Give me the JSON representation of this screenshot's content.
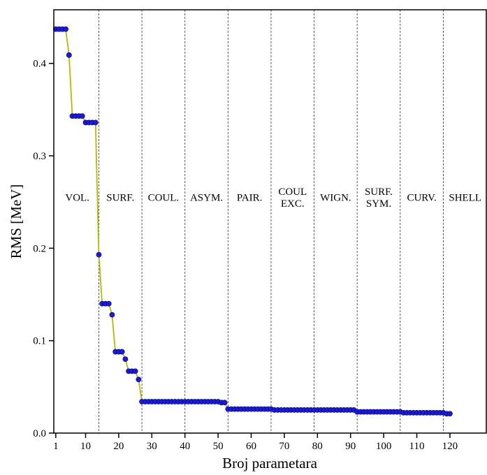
{
  "chart_data": {
    "type": "line",
    "x_label": "Broj parametara",
    "y_label": "RMS [MeV]",
    "xlim": [
      0.4,
      131.2
    ],
    "ylim": [
      0,
      0.458
    ],
    "xticks": [
      1,
      10,
      20,
      30,
      40,
      50,
      60,
      70,
      80,
      90,
      100,
      110,
      120
    ],
    "yticks": [
      {
        "value": 0,
        "label": "0.0"
      },
      0.1,
      0.2,
      0.3,
      0.4
    ],
    "dividers": [
      14,
      27,
      40,
      53,
      66,
      79,
      92,
      105,
      118
    ],
    "section_labels": [
      [
        "VOL."
      ],
      [
        "SURF."
      ],
      [
        "COUL."
      ],
      [
        "ASYM."
      ],
      [
        "PAIR."
      ],
      [
        "COUL",
        "EXC."
      ],
      [
        "WIGN."
      ],
      [
        "SURF.",
        "SYM."
      ],
      [
        "CURV."
      ],
      [
        "SHELL"
      ]
    ],
    "line_color": "#b8b800",
    "marker_color": "#1a1ad8",
    "x": [
      1,
      2,
      3,
      4,
      5,
      6,
      7,
      8,
      9,
      10,
      11,
      12,
      13,
      14,
      15,
      16,
      17,
      18,
      19,
      20,
      21,
      22,
      23,
      24,
      25,
      26,
      27,
      28,
      29,
      30,
      31,
      32,
      33,
      34,
      35,
      36,
      37,
      38,
      39,
      40,
      41,
      42,
      43,
      44,
      45,
      46,
      47,
      48,
      49,
      50,
      51,
      52,
      53,
      54,
      55,
      56,
      57,
      58,
      59,
      60,
      61,
      62,
      63,
      64,
      65,
      66,
      67,
      68,
      69,
      70,
      71,
      72,
      73,
      74,
      75,
      76,
      77,
      78,
      79,
      80,
      81,
      82,
      83,
      84,
      85,
      86,
      87,
      88,
      89,
      90,
      91,
      92,
      93,
      94,
      95,
      96,
      97,
      98,
      99,
      100,
      101,
      102,
      103,
      104,
      105,
      106,
      107,
      108,
      109,
      110,
      111,
      112,
      113,
      114,
      115,
      116,
      117,
      118,
      119,
      120
    ],
    "values": [
      0.437,
      0.437,
      0.437,
      0.437,
      0.409,
      0.343,
      0.343,
      0.343,
      0.343,
      0.336,
      0.336,
      0.336,
      0.336,
      0.193,
      0.14,
      0.14,
      0.14,
      0.128,
      0.088,
      0.088,
      0.088,
      0.08,
      0.067,
      0.067,
      0.067,
      0.058,
      0.034,
      0.034,
      0.034,
      0.034,
      0.034,
      0.034,
      0.034,
      0.034,
      0.034,
      0.034,
      0.034,
      0.034,
      0.034,
      0.034,
      0.034,
      0.034,
      0.034,
      0.034,
      0.034,
      0.034,
      0.034,
      0.034,
      0.034,
      0.034,
      0.033,
      0.033,
      0.026,
      0.026,
      0.026,
      0.026,
      0.026,
      0.026,
      0.026,
      0.026,
      0.026,
      0.026,
      0.026,
      0.026,
      0.026,
      0.026,
      0.025,
      0.025,
      0.025,
      0.025,
      0.025,
      0.025,
      0.025,
      0.025,
      0.025,
      0.025,
      0.025,
      0.025,
      0.025,
      0.025,
      0.025,
      0.025,
      0.025,
      0.025,
      0.025,
      0.025,
      0.025,
      0.025,
      0.025,
      0.025,
      0.025,
      0.023,
      0.023,
      0.023,
      0.023,
      0.023,
      0.023,
      0.023,
      0.023,
      0.023,
      0.023,
      0.023,
      0.023,
      0.023,
      0.023,
      0.022,
      0.022,
      0.022,
      0.022,
      0.022,
      0.022,
      0.022,
      0.022,
      0.022,
      0.022,
      0.022,
      0.022,
      0.022,
      0.021,
      0.021
    ]
  }
}
